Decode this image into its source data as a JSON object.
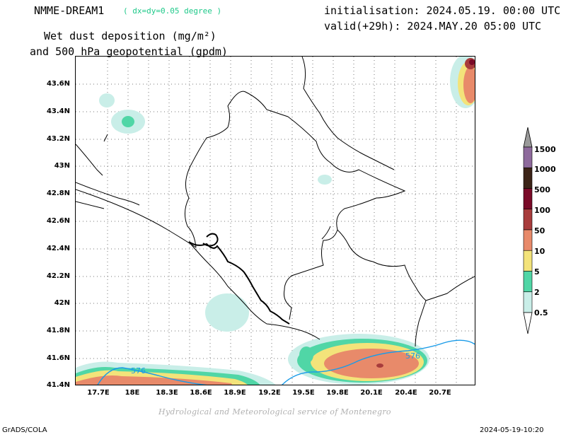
{
  "header": {
    "model": "NMME-DREAM1",
    "resolution": "( dx=dy=0.05 degree )",
    "initialisation": "initialisation: 2024.05.19. 00:00 UTC",
    "valid": "valid(+29h): 2024.MAY.20 05:00 UTC",
    "title_line1": "Wet dust deposition (mg/m²)",
    "title_line2": "and 500 hPa geopotential (gpdm)"
  },
  "axes": {
    "y_labels": [
      "43.6N",
      "43.4N",
      "43.2N",
      "43N",
      "42.8N",
      "42.6N",
      "42.4N",
      "42.2N",
      "42N",
      "41.8N",
      "41.6N",
      "41.4N"
    ],
    "x_labels": [
      "17.7E",
      "18E",
      "18.3E",
      "18.6E",
      "18.9E",
      "19.2E",
      "19.5E",
      "19.8E",
      "20.1E",
      "20.4E",
      "20.7E"
    ]
  },
  "colorbar": {
    "labels": [
      "1500",
      "1000",
      "500",
      "100",
      "50",
      "10",
      "5",
      "2",
      "0.5"
    ],
    "colors": [
      "#9a9a9a",
      "#8e6a9c",
      "#3c2417",
      "#7a0a28",
      "#a83c3c",
      "#e88a6a",
      "#f3e37a",
      "#50d6a6",
      "#c9eee8"
    ]
  },
  "contour_label": "576",
  "footer": {
    "credit": "Hydrological and Meteorological service of Montenegro",
    "software": "GrADS/COLA",
    "timestamp": "2024-05-19-10:20"
  }
}
